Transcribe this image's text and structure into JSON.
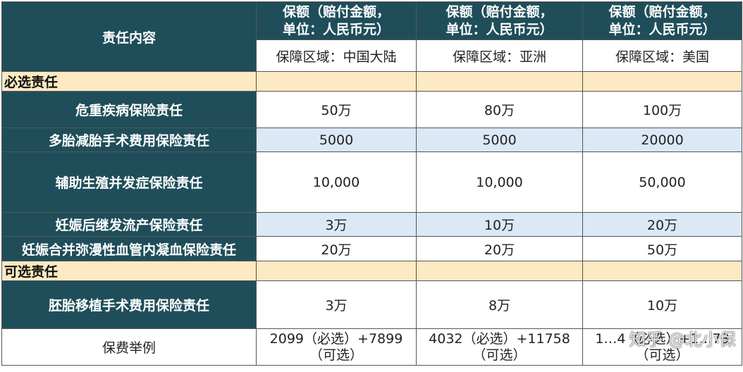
{
  "header": {
    "item_col": "责任内容",
    "amount_line1": "保额（赔付金额，",
    "amount_line2": "单位：人民币元）",
    "regions": [
      "保障区域：中国大陆",
      "保障区域：亚洲",
      "保障区域：美国"
    ]
  },
  "sections": {
    "required": "必选责任",
    "optional": "可选责任"
  },
  "rows": [
    {
      "name": "危重疾病保险责任",
      "values": [
        "50万",
        "80万",
        "100万"
      ]
    },
    {
      "name": "多胎减胎手术费用保险责任",
      "values": [
        "5000",
        "5000",
        "20000"
      ]
    },
    {
      "name": "辅助生殖并发症保险责任",
      "values": [
        "10,000",
        "10,000",
        "50,000"
      ]
    },
    {
      "name": "妊娠后继发流产保险责任",
      "values": [
        "3万",
        "10万",
        "20万"
      ]
    },
    {
      "name": "妊娠合并弥漫性血管内凝血保险责任",
      "values": [
        "20万",
        "20万",
        "50万"
      ]
    }
  ],
  "optional_rows": [
    {
      "name": "胚胎移植手术费用保险责任",
      "values": [
        "3万",
        "8万",
        "10万"
      ]
    }
  ],
  "premium": {
    "label": "保费举例",
    "values": [
      {
        "line1": "2099（必选）+7899",
        "line2": "（可选）"
      },
      {
        "line1": "4032（必选）+11758",
        "line2": "（可选）"
      },
      {
        "line1": "1…4（必选）+1…73",
        "line2": "（可选）"
      }
    ]
  },
  "watermark": "知乎 @北小保"
}
